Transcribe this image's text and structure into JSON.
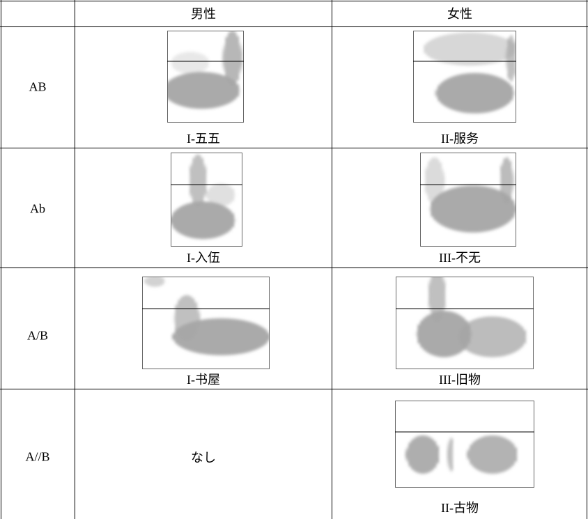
{
  "table": {
    "header": [
      "男性",
      "女性"
    ],
    "rows": [
      {
        "label": "AB",
        "male": "I-五五",
        "female": "II-服务"
      },
      {
        "label": "Ab",
        "male": "I-入伍",
        "female": "III-不无"
      },
      {
        "label": "A/B",
        "male": "I-书屋",
        "female": "III-旧物"
      },
      {
        "label": "A//B",
        "male": "なし",
        "female": "II-古物"
      }
    ]
  }
}
